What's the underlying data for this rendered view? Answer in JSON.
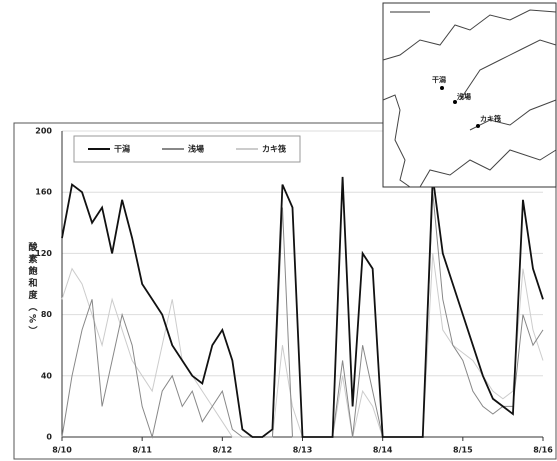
{
  "chart_data": {
    "type": "line",
    "y_label": "酸素飽和度（%）",
    "x": [
      10,
      10.125,
      10.25,
      10.375,
      10.5,
      10.625,
      10.75,
      10.875,
      11,
      11.125,
      11.25,
      11.375,
      11.5,
      11.625,
      11.75,
      11.875,
      12,
      12.125,
      12.25,
      12.375,
      12.5,
      12.625,
      12.75,
      12.875,
      13,
      13.125,
      13.25,
      13.375,
      13.5,
      13.625,
      13.75,
      13.875,
      14,
      14.125,
      14.25,
      14.375,
      14.5,
      14.625,
      14.75,
      14.875,
      15,
      15.125,
      15.25,
      15.375,
      15.5,
      15.625,
      15.75,
      15.875,
      16
    ],
    "series": [
      {
        "name": "干潟",
        "color": "#111111",
        "values": [
          130,
          165,
          160,
          140,
          150,
          120,
          155,
          130,
          100,
          90,
          80,
          60,
          50,
          40,
          35,
          60,
          70,
          50,
          5,
          0,
          0,
          5,
          165,
          150,
          0,
          0,
          0,
          0,
          170,
          20,
          120,
          110,
          0,
          0,
          0,
          0,
          0,
          170,
          120,
          100,
          80,
          60,
          40,
          25,
          20,
          15,
          155,
          110,
          90
        ]
      },
      {
        "name": "浅場",
        "color": "#888888",
        "values": [
          0,
          40,
          70,
          90,
          20,
          50,
          80,
          60,
          20,
          0,
          30,
          40,
          20,
          30,
          10,
          20,
          30,
          5,
          0,
          0,
          0,
          0,
          150,
          0,
          0,
          0,
          0,
          0,
          50,
          0,
          60,
          30,
          0,
          0,
          0,
          0,
          0,
          160,
          90,
          60,
          50,
          30,
          20,
          15,
          20,
          20,
          80,
          60,
          70
        ]
      },
      {
        "name": "カキ筏",
        "color": "#cccccc",
        "values": [
          90,
          110,
          100,
          80,
          60,
          90,
          70,
          50,
          40,
          30,
          60,
          90,
          50,
          40,
          30,
          20,
          10,
          0,
          0,
          0,
          0,
          0,
          60,
          20,
          0,
          0,
          0,
          0,
          40,
          0,
          30,
          20,
          0,
          0,
          0,
          0,
          0,
          120,
          70,
          60,
          55,
          50,
          40,
          30,
          25,
          30,
          110,
          70,
          50
        ]
      }
    ],
    "xlim": [
      10,
      16
    ],
    "xticks": [
      {
        "value": 10,
        "label": "8/10"
      },
      {
        "value": 11,
        "label": "8/11"
      },
      {
        "value": 12,
        "label": "8/12"
      },
      {
        "value": 13,
        "label": "8/13"
      },
      {
        "value": 14,
        "label": "8/14"
      },
      {
        "value": 15,
        "label": "8/15"
      },
      {
        "value": 16,
        "label": "8/16"
      }
    ],
    "ylim": [
      0,
      200
    ],
    "yticks": [
      0,
      40,
      80,
      120,
      160,
      200
    ],
    "grid": true
  },
  "map": {
    "stations": [
      "干潟",
      "浅場",
      "カキ筏"
    ]
  }
}
